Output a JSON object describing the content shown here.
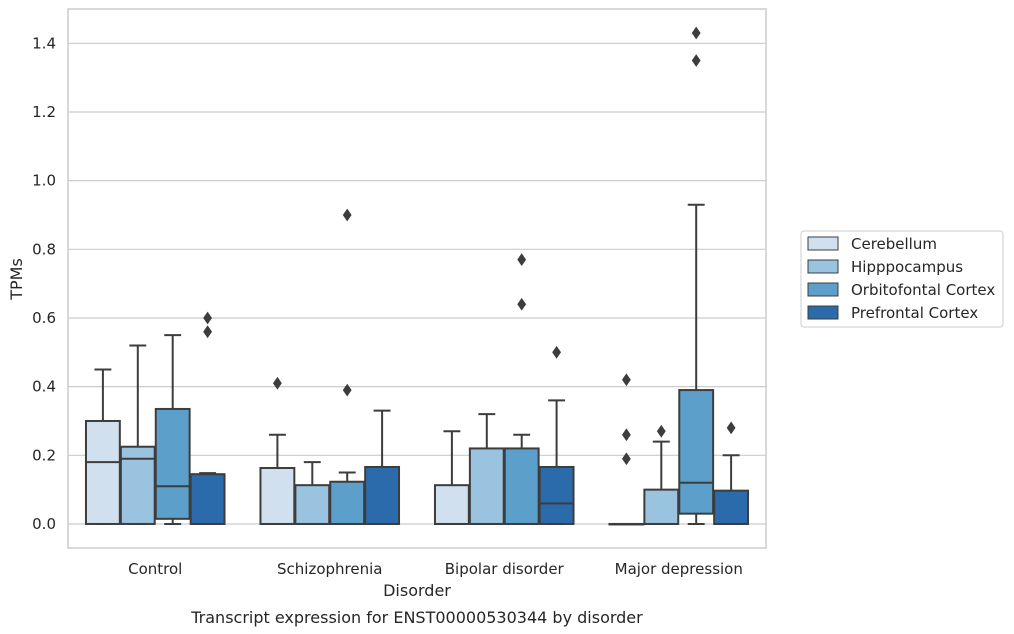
{
  "chart_data": {
    "type": "box",
    "caption": "Transcript expression for ENST00000530344 by disorder",
    "xlabel": "Disorder",
    "ylabel": "TPMs",
    "ylim": [
      -0.07,
      1.5
    ],
    "yticks": [
      "0.0",
      "0.2",
      "0.4",
      "0.6",
      "0.8",
      "1.0",
      "1.2",
      "1.4"
    ],
    "grid": true,
    "legend_position": "right",
    "categories": [
      "Control",
      "Schizophrenia",
      "Bipolar disorder",
      "Major depression"
    ],
    "series": [
      {
        "name": "Cerebellum",
        "color": "#d0e0ef",
        "boxes": [
          {
            "whislo": 0.0,
            "q1": 0.0,
            "med": 0.18,
            "q3": 0.3,
            "whishi": 0.45,
            "fliers": []
          },
          {
            "whislo": 0.0,
            "q1": 0.0,
            "med": 0.0,
            "q3": 0.163,
            "whishi": 0.26,
            "fliers": [
              0.41
            ]
          },
          {
            "whislo": 0.0,
            "q1": 0.0,
            "med": 0.0,
            "q3": 0.113,
            "whishi": 0.27,
            "fliers": []
          },
          {
            "whislo": 0.0,
            "q1": 0.0,
            "med": 0.0,
            "q3": 0.0,
            "whishi": 0.0,
            "fliers": [
              0.42,
              0.26,
              0.19
            ]
          }
        ]
      },
      {
        "name": "Hipppocampus",
        "color": "#99c3de",
        "boxes": [
          {
            "whislo": 0.0,
            "q1": 0.0,
            "med": 0.19,
            "q3": 0.225,
            "whishi": 0.52,
            "fliers": []
          },
          {
            "whislo": 0.0,
            "q1": 0.0,
            "med": 0.0,
            "q3": 0.113,
            "whishi": 0.18,
            "fliers": []
          },
          {
            "whislo": 0.0,
            "q1": 0.0,
            "med": 0.0,
            "q3": 0.22,
            "whishi": 0.32,
            "fliers": []
          },
          {
            "whislo": 0.0,
            "q1": 0.0,
            "med": 0.0,
            "q3": 0.1,
            "whishi": 0.24,
            "fliers": [
              0.27
            ]
          }
        ]
      },
      {
        "name": "Orbitofontal Cortex",
        "color": "#5b9fca",
        "boxes": [
          {
            "whislo": 0.0,
            "q1": 0.015,
            "med": 0.11,
            "q3": 0.335,
            "whishi": 0.55,
            "fliers": []
          },
          {
            "whislo": 0.0,
            "q1": 0.0,
            "med": 0.0,
            "q3": 0.123,
            "whishi": 0.15,
            "fliers": [
              0.9,
              0.39
            ]
          },
          {
            "whislo": 0.0,
            "q1": 0.0,
            "med": 0.0,
            "q3": 0.22,
            "whishi": 0.26,
            "fliers": [
              0.77,
              0.64
            ]
          },
          {
            "whislo": 0.0,
            "q1": 0.03,
            "med": 0.12,
            "q3": 0.39,
            "whishi": 0.93,
            "fliers": [
              1.35,
              1.43
            ]
          }
        ]
      },
      {
        "name": "Prefrontal Cortex",
        "color": "#2b6aab",
        "boxes": [
          {
            "whislo": 0.0,
            "q1": 0.0,
            "med": 0.0,
            "q3": 0.145,
            "whishi": 0.148,
            "fliers": [
              0.6,
              0.56
            ]
          },
          {
            "whislo": 0.0,
            "q1": 0.0,
            "med": 0.0,
            "q3": 0.166,
            "whishi": 0.33,
            "fliers": []
          },
          {
            "whislo": 0.0,
            "q1": 0.0,
            "med": 0.06,
            "q3": 0.166,
            "whishi": 0.36,
            "fliers": [
              0.5
            ]
          },
          {
            "whislo": 0.0,
            "q1": 0.0,
            "med": 0.0,
            "q3": 0.097,
            "whishi": 0.2,
            "fliers": [
              0.28
            ]
          }
        ]
      }
    ]
  }
}
